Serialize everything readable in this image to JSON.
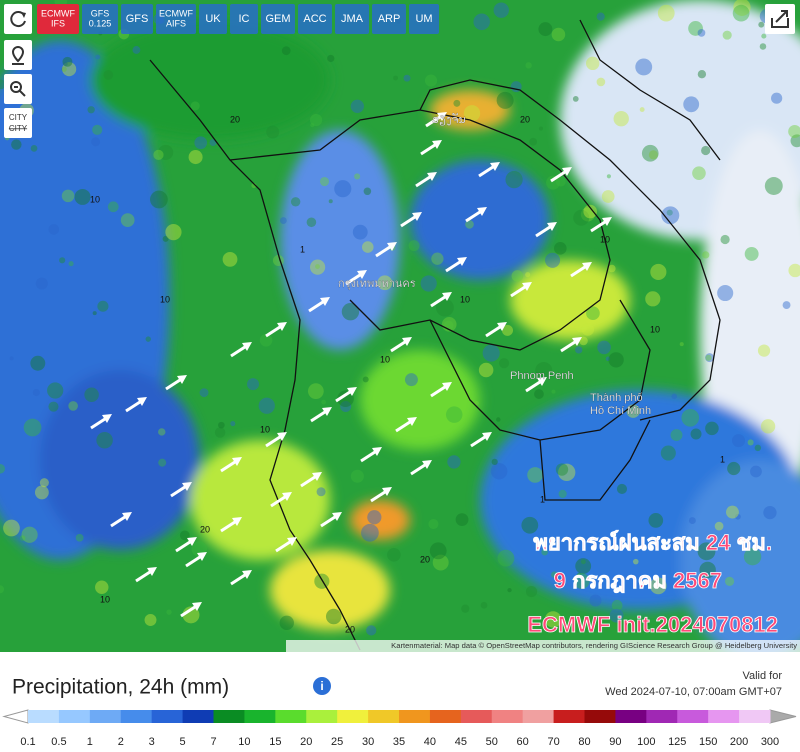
{
  "toolbar": {
    "models": [
      [
        "ECMWF",
        "IFS"
      ],
      [
        "GFS",
        "0.125"
      ],
      [
        "GFS"
      ],
      [
        "ECMWF",
        "AIFS"
      ],
      [
        "UK"
      ],
      [
        "IC"
      ],
      [
        "GEM"
      ],
      [
        "ACC"
      ],
      [
        "JMA"
      ],
      [
        "ARP"
      ],
      [
        "UM"
      ]
    ],
    "city_button": [
      "CITY",
      "CITY"
    ]
  },
  "map": {
    "place_labels": [
      "ວຽງຈັນ",
      "กรุงเทพมหานคร",
      "Phnom Penh",
      "Thành phố",
      "Hồ Chí Minh"
    ],
    "contour_labels": [
      "10",
      "10",
      "20",
      "10",
      "1",
      "10",
      "20",
      "10",
      "1",
      "10",
      "20",
      "10",
      "20",
      "1",
      "10",
      "20"
    ],
    "forecast_title": "พยากรณ์ฝนสะสม 24 ชม.",
    "forecast_date": "9 กรกฎาคม 2567",
    "forecast_init": "ECMWF init.2024070812",
    "attribution": "Kartenmaterial: Map data © OpenStreetMap contributors, rendering GIScience Research Group @ Heidelberg University"
  },
  "legend": {
    "title": "Precipitation, 24h (mm)",
    "valid_label": "Valid for",
    "valid_time": "Wed 2024-07-10, 07:00am GMT+07",
    "labels": [
      "0.1",
      "0.5",
      "1",
      "2",
      "3",
      "5",
      "7",
      "10",
      "15",
      "20",
      "25",
      "30",
      "35",
      "40",
      "45",
      "50",
      "60",
      "70",
      "80",
      "90",
      "100",
      "125",
      "150",
      "200",
      "300"
    ],
    "colors": [
      "#b9dcff",
      "#96c8ff",
      "#6eaaf5",
      "#468ceb",
      "#2864d7",
      "#0f3cb4",
      "#0a8c23",
      "#19b42d",
      "#5adc2d",
      "#aaf03c",
      "#f0f03c",
      "#f0c828",
      "#f0961e",
      "#e6641e",
      "#e65a5a",
      "#f08282",
      "#f0a0a0",
      "#c81e1e",
      "#960a0a",
      "#780082",
      "#a028b4",
      "#c85adc",
      "#e696f0",
      "#f0c8f5"
    ]
  }
}
